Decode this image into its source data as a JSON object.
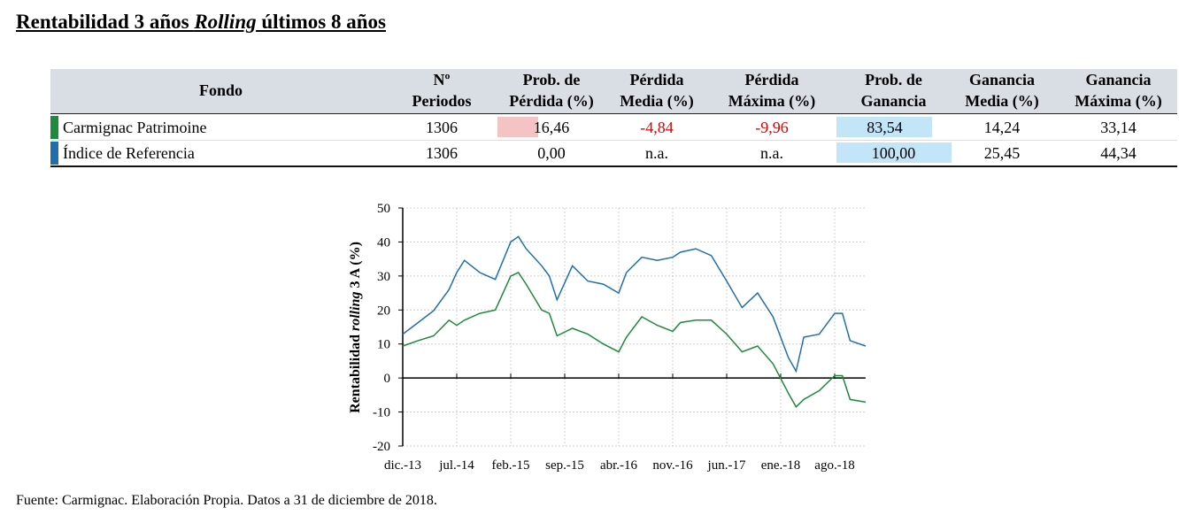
{
  "title": {
    "pre": "Rentabilidad 3 años ",
    "italic": "Rolling",
    "post": " últimos 8 años"
  },
  "table": {
    "headers": [
      {
        "l1": "Fondo",
        "l2": ""
      },
      {
        "l1": "Nº",
        "l2": "Periodos"
      },
      {
        "l1": "Prob. de",
        "l2": "Pérdida (%)"
      },
      {
        "l1": "Pérdida",
        "l2": "Media (%)"
      },
      {
        "l1": "Pérdida",
        "l2": "Máxima (%)"
      },
      {
        "l1": "Prob. de",
        "l2": "Ganancia"
      },
      {
        "l1": "Ganancia",
        "l2": "Media (%)"
      },
      {
        "l1": "Ganancia",
        "l2": "Máxima (%)"
      }
    ],
    "rows": [
      {
        "color": "#1e8a3c",
        "cells": [
          "Carmignac Patrimoine",
          "1306",
          "16,46",
          "-4,84",
          "-9,96",
          "83,54",
          "14,24",
          "33,14"
        ]
      },
      {
        "color": "#1f6fb0",
        "cells": [
          "Índice de Referencia",
          "1306",
          "0,00",
          "n.a.",
          "n.a.",
          "100,00",
          "25,45",
          "44,34"
        ]
      }
    ],
    "loss_highlight": "#f4c4c4",
    "gain_highlight": "#c3e5f8",
    "negative_color": "#e00000"
  },
  "chart_data": {
    "type": "line",
    "ylabel_pre": "Rentabilidad  ",
    "ylabel_italic": "rolling",
    "ylabel_post": " 3 A (%)",
    "ylim": [
      -20,
      50
    ],
    "yticks": [
      "50",
      "40",
      "30",
      "20",
      "10",
      "0",
      "-10",
      "-20"
    ],
    "xticks": [
      "dic.-13",
      "jul.-14",
      "feb.-15",
      "sep.-15",
      "abr.-16",
      "nov.-16",
      "jun.-17",
      "ene.-18",
      "ago.-18"
    ],
    "grid": true,
    "x": [
      "2013-12",
      "2014-02",
      "2014-04",
      "2014-06",
      "2014-07",
      "2014-08",
      "2014-10",
      "2014-12",
      "2015-02",
      "2015-03",
      "2015-04",
      "2015-06",
      "2015-07",
      "2015-08",
      "2015-10",
      "2015-12",
      "2016-02",
      "2016-04",
      "2016-05",
      "2016-07",
      "2016-09",
      "2016-11",
      "2016-12",
      "2017-02",
      "2017-04",
      "2017-06",
      "2017-08",
      "2017-10",
      "2017-12",
      "2018-02",
      "2018-03",
      "2018-04",
      "2018-06",
      "2018-08",
      "2018-09",
      "2018-10",
      "2018-12"
    ],
    "series": [
      {
        "color": "#1f6fb0",
        "values": [
          12.9,
          16.3,
          19.8,
          26,
          31,
          34.6,
          31,
          29,
          40,
          41.6,
          38,
          33,
          30,
          23,
          33,
          28.5,
          27.6,
          25,
          31,
          35.5,
          34.6,
          35.5,
          37,
          38,
          36,
          28.5,
          20.7,
          25,
          18,
          6,
          2,
          12,
          12.9,
          19,
          19,
          11,
          9.4
        ]
      },
      {
        "color": "#1e8a3c",
        "values": [
          9.4,
          11,
          12.4,
          17,
          15.5,
          17,
          19,
          20,
          30,
          31,
          27.6,
          20,
          19,
          12.4,
          14.6,
          12.9,
          10,
          7.7,
          12,
          18,
          15.5,
          13.7,
          16.3,
          17,
          17,
          12.9,
          7.7,
          9.4,
          4.2,
          -4.5,
          -8.5,
          -6.3,
          -3.7,
          0.7,
          0.7,
          -6.3,
          -7.1
        ]
      }
    ]
  },
  "source": "Fuente: Carmignac. Elaboración Propia. Datos a 31 de diciembre de 2018."
}
